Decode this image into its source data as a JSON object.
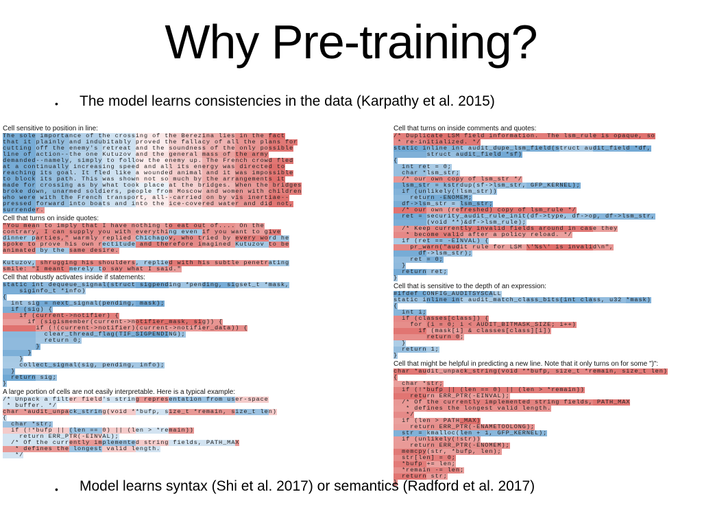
{
  "slide": {
    "title": "Why Pre-training?",
    "bullet1": "The model learns consistencies in the data (Karpathy et al. 2015)",
    "bullet2": "Model learns syntax (Shi et al. 2017) or semantics (Radford et al. 2017)",
    "bullet_glyph": "•"
  },
  "figure": {
    "colors": {
      "positive": "#d9534f",
      "negative": "#4a90c8",
      "neutral": "#eef2f6"
    },
    "left_panels": [
      {
        "caption": "Cell sensitive to position in line:",
        "lines": [
          {
            "t": "The sole importance of the crossing of the Berezina lies in the fact",
            "c": "grad"
          },
          {
            "t": "that it plainly and indubitably proved the fallacy of all the plans for",
            "c": "grad"
          },
          {
            "t": "cutting off the enemy's retreat and the soundness of the only possible",
            "c": "grad"
          },
          {
            "t": "line of action--the one Kutuzov and the general mass of the army",
            "c": "grad"
          },
          {
            "t": "demanded--namely, simply to follow the enemy up. The French crowd fled",
            "c": "grad"
          },
          {
            "t": "at a continually increasing speed and all its energy was directed to",
            "c": "grad"
          },
          {
            "t": "reaching its goal. It fled like a wounded animal and it was impossible",
            "c": "grad"
          },
          {
            "t": "to block its path. This was shown not so much by the arrangements it",
            "c": "grad"
          },
          {
            "t": "made for crossing as by what took place at the bridges. When the bridges",
            "c": "grad"
          },
          {
            "t": "broke down, unarmed soldiers, people from Moscow and women with children",
            "c": "grad"
          },
          {
            "t": "who were with the French transport, all--carried on by vis inertiae--",
            "c": "grad"
          },
          {
            "t": "pressed forward into boats and into the ice-covered water and did not,",
            "c": "grad"
          },
          {
            "t": "surrender.",
            "c": "grad"
          }
        ]
      },
      {
        "caption": "Cell that turns on inside quotes:",
        "lines": [
          {
            "t": "\"You mean to imply that I have nothing to eat out of.... On the",
            "c": "quote"
          },
          {
            "t": "contrary, I can supply you with everything even if you want to give",
            "c": "quote"
          },
          {
            "t": "dinner parties,\" warmly replied Chichagov, who tried by every word he",
            "c": "quote"
          },
          {
            "t": "spoke to prove his own rectitude and therefore imagined Kutuzov to be",
            "c": "quote"
          },
          {
            "t": "animated by the same desire.",
            "c": "quote"
          },
          {
            "t": "",
            "c": "blank"
          },
          {
            "t": "Kutuzov, shrugging his shoulders, replied with his subtle penetrating",
            "c": "quote"
          },
          {
            "t": "smile: \"I meant merely to say what I said.\"",
            "c": "quote"
          }
        ]
      },
      {
        "caption": "Cell that robustly activates inside if statements:",
        "lines": [
          {
            "t": "static int dequeue_signal(struct sigpending *pending, sigset_t *mask,",
            "c": "blue"
          },
          {
            "t": "    siginfo_t *info)",
            "c": "blue"
          },
          {
            "t": "{",
            "c": "blue"
          },
          {
            "t": "  int sig = next_signal(pending, mask);",
            "c": "blue"
          },
          {
            "t": "  if (sig) {",
            "c": "blue"
          },
          {
            "t": "    if (current->notifier) {",
            "c": "red"
          },
          {
            "t": "      if (sigismember(current->notifier_mask, sig)) {",
            "c": "red"
          },
          {
            "t": "        if (!(current->notifier)(current->notifier_data)) {",
            "c": "red"
          },
          {
            "t": "          clear_thread_flag(TIF_SIGPENDING);",
            "c": "blue"
          },
          {
            "t": "          return 0;",
            "c": "blue"
          },
          {
            "t": "        }",
            "c": "blue"
          },
          {
            "t": "      }",
            "c": "blue"
          },
          {
            "t": "    }",
            "c": "blue"
          },
          {
            "t": "    collect_signal(sig, pending, info);",
            "c": "blue"
          },
          {
            "t": "  }",
            "c": "blue"
          },
          {
            "t": "  return sig;",
            "c": "blue"
          },
          {
            "t": "}",
            "c": "blue"
          }
        ]
      },
      {
        "caption": "A large portion of cells are not easily interpretable. Here is a typical example:",
        "lines": [
          {
            "t": "/* Unpack a filter field's string representation from user-space",
            "c": "mix"
          },
          {
            "t": " * buffer. */",
            "c": "mix"
          },
          {
            "t": "char *audit_unpack_string(void **bufp, size_t *remain, size_t len)",
            "c": "mix"
          },
          {
            "t": "{",
            "c": "mix"
          },
          {
            "t": "  char *str;",
            "c": "mix"
          },
          {
            "t": "  if (!*bufp || (len == 0) || (len > *remain))",
            "c": "mix"
          },
          {
            "t": "    return ERR_PTR(-EINVAL);",
            "c": "mix"
          },
          {
            "t": "  /* Of the currently implemented string fields, PATH_MAX",
            "c": "mix"
          },
          {
            "t": "   * defines the longest valid length.",
            "c": "mix"
          },
          {
            "t": "   */",
            "c": "mix"
          }
        ]
      }
    ],
    "right_panels": [
      {
        "caption": "Cell that turns on inside comments and quotes:",
        "lines": [
          {
            "t": "/* Duplicate LSM field information.  The lsm_rule is opaque, so",
            "c": "red"
          },
          {
            "t": " * re-initialized. */",
            "c": "red"
          },
          {
            "t": "static inline int audit_dupe_lsm_field(struct audit_field *df,",
            "c": "blue"
          },
          {
            "t": "        struct audit_field *sf)",
            "c": "blue"
          },
          {
            "t": "{",
            "c": "blue"
          },
          {
            "t": "  int ret = 0;",
            "c": "blue"
          },
          {
            "t": "  char *lsm_str;",
            "c": "blue"
          },
          {
            "t": "  /* our own copy of lsm_str */",
            "c": "red"
          },
          {
            "t": "  lsm_str = kstrdup(sf->lsm_str, GFP_KERNEL);",
            "c": "blue"
          },
          {
            "t": "  if (unlikely(!lsm_str))",
            "c": "blue"
          },
          {
            "t": "    return -ENOMEM;",
            "c": "blue"
          },
          {
            "t": "  df->lsm_str = lsm_str;",
            "c": "blue"
          },
          {
            "t": "  /* our own (refreshed) copy of lsm_rule */",
            "c": "red"
          },
          {
            "t": "  ret = security_audit_rule_init(df->type, df->op, df->lsm_str,",
            "c": "blue"
          },
          {
            "t": "        (void **)&df->lsm_rule);",
            "c": "blue"
          },
          {
            "t": "  /* Keep currently invalid fields around in case they",
            "c": "red"
          },
          {
            "t": "   * become valid after a policy reload. */",
            "c": "red"
          },
          {
            "t": "  if (ret == -EINVAL) {",
            "c": "blue"
          },
          {
            "t": "    pr_warn(\"audit rule for LSM \\'%s\\' is invalid\\n\",",
            "c": "red"
          },
          {
            "t": "      df->lsm_str);",
            "c": "blue"
          },
          {
            "t": "    ret = 0;",
            "c": "blue"
          },
          {
            "t": "  }",
            "c": "blue"
          },
          {
            "t": "  return ret;",
            "c": "blue"
          },
          {
            "t": "}",
            "c": "blue"
          }
        ]
      },
      {
        "caption": "Cell that is sensitive to the depth of an expression:",
        "lines": [
          {
            "t": "#ifdef CONFIG_AUDITSYSCALL",
            "c": "blue"
          },
          {
            "t": "static inline int audit_match_class_bits(int class, u32 *mask)",
            "c": "blue"
          },
          {
            "t": "{",
            "c": "blue"
          },
          {
            "t": "  int i;",
            "c": "blue"
          },
          {
            "t": "  if (classes[class]) {",
            "c": "red"
          },
          {
            "t": "    for (i = 0; i < AUDIT_BITMASK_SIZE; i++)",
            "c": "red"
          },
          {
            "t": "      if (mask[i] & classes[class][i])",
            "c": "red"
          },
          {
            "t": "        return 0;",
            "c": "red"
          },
          {
            "t": "  }",
            "c": "blue"
          },
          {
            "t": "  return 1;",
            "c": "blue"
          },
          {
            "t": "}",
            "c": "blue"
          }
        ]
      },
      {
        "caption": "Cell that might be helpful in predicting a new line. Note that it only turns on for some \")\":",
        "lines": [
          {
            "t": "char *audit_unpack_string(void **bufp, size_t *remain, size_t len)",
            "c": "red"
          },
          {
            "t": "{",
            "c": "red"
          },
          {
            "t": "  char *str;",
            "c": "red"
          },
          {
            "t": "  if (!*bufp || (len == 0) || (len > *remain))",
            "c": "red"
          },
          {
            "t": "    return ERR_PTR(-EINVAL);",
            "c": "red"
          },
          {
            "t": "  /* Of the currently implemented string fields, PATH_MAX",
            "c": "red"
          },
          {
            "t": "   * defines the longest valid length.",
            "c": "red"
          },
          {
            "t": "   */",
            "c": "red"
          },
          {
            "t": "  if (len > PATH_MAX)",
            "c": "red"
          },
          {
            "t": "    return ERR_PTR(-ENAMETOOLONG);",
            "c": "red"
          },
          {
            "t": "  str = kmalloc(len + 1, GFP_KERNEL);",
            "c": "blue"
          },
          {
            "t": "  if (unlikely(!str))",
            "c": "red"
          },
          {
            "t": "    return ERR_PTR(-ENOMEM);",
            "c": "red"
          },
          {
            "t": "  memcpy(str, *bufp, len);",
            "c": "red"
          },
          {
            "t": "  str[len] = 0;",
            "c": "red"
          },
          {
            "t": "  *bufp += len;",
            "c": "red"
          },
          {
            "t": "  *remain -= len;",
            "c": "red"
          },
          {
            "t": "  return str;",
            "c": "red"
          },
          {
            "t": "}",
            "c": "red"
          }
        ]
      }
    ]
  }
}
